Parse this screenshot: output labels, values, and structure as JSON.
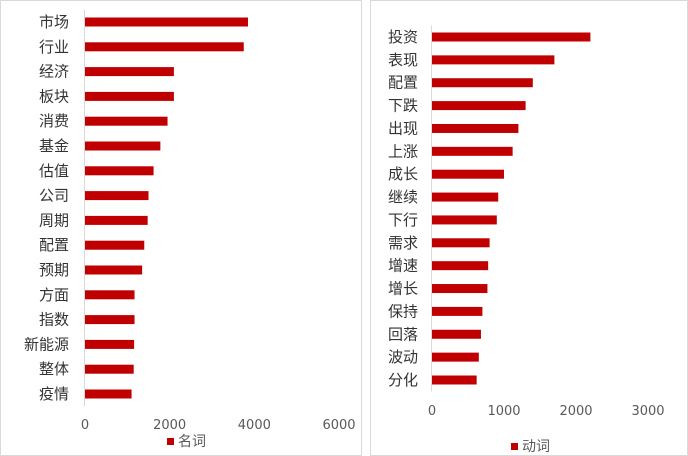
{
  "chart_data": [
    {
      "type": "bar",
      "orientation": "horizontal",
      "categories": [
        "市场",
        "行业",
        "经济",
        "板块",
        "消费",
        "基金",
        "估值",
        "公司",
        "周期",
        "配置",
        "预期",
        "方面",
        "指数",
        "新能源",
        "整体",
        "疫情"
      ],
      "series": [
        {
          "name": "名词",
          "values": [
            3850,
            3750,
            2100,
            2100,
            1950,
            1780,
            1620,
            1500,
            1480,
            1400,
            1350,
            1170,
            1170,
            1160,
            1150,
            1100
          ]
        }
      ],
      "xlim": [
        0,
        6000
      ],
      "xticks": [
        "0",
        "2000",
        "4000",
        "6000"
      ],
      "legend_position": "bottom",
      "grid": false
    },
    {
      "type": "bar",
      "orientation": "horizontal",
      "categories": [
        "投资",
        "表现",
        "配置",
        "下跌",
        "出现",
        "上涨",
        "成长",
        "继续",
        "下行",
        "需求",
        "增速",
        "增长",
        "保持",
        "回落",
        "波动",
        "分化"
      ],
      "series": [
        {
          "name": "动词",
          "values": [
            2200,
            1700,
            1400,
            1300,
            1200,
            1120,
            1000,
            920,
            900,
            800,
            780,
            770,
            700,
            680,
            650,
            620
          ]
        }
      ],
      "xlim": [
        0,
        3000
      ],
      "xticks": [
        "0",
        "1000",
        "2000",
        "3000"
      ],
      "legend_position": "bottom",
      "grid": false
    }
  ],
  "colors": {
    "bar": "#c00000"
  }
}
